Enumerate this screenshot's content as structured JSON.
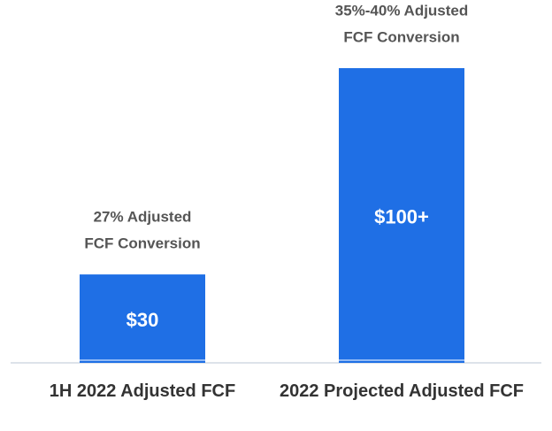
{
  "chart_data": {
    "type": "bar",
    "categories": [
      "1H 2022 Adjusted FCF",
      "2022 Projected Adjusted FCF"
    ],
    "values": [
      30,
      100
    ],
    "value_labels": [
      "$30",
      "$100+"
    ],
    "annotations": [
      [
        "27% Adjusted",
        "FCF Conversion"
      ],
      [
        "35%-40% Adjusted",
        "FCF Conversion"
      ]
    ],
    "color": "#1f6fe5",
    "ylim": [
      0,
      100
    ]
  }
}
